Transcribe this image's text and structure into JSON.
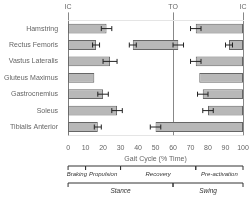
{
  "chart_data": {
    "type": "bar",
    "orientation": "horizontal",
    "categories": [
      "Hamstring",
      "Rectus Femoris",
      "Vastus Lateralis",
      "Gluteus Maximus",
      "Gastrocnemius",
      "Soleus",
      "Tibialis Anterior"
    ],
    "values": [
      [
        {
          "start": 0,
          "end": 22,
          "err_end": 3
        },
        {
          "start": 73,
          "end": 100,
          "err_start": 3
        }
      ],
      [
        {
          "start": 0,
          "end": 16,
          "err_end": 2
        },
        {
          "start": 37,
          "end": 63,
          "err_start": 2,
          "err_end": 3
        },
        {
          "start": 92,
          "end": 100,
          "err_start": 2
        }
      ],
      [
        {
          "start": 0,
          "end": 24,
          "err_end": 4
        },
        {
          "start": 73,
          "end": 100,
          "err_start": 3
        }
      ],
      [
        {
          "start": 0,
          "end": 15
        },
        {
          "start": 75,
          "end": 100
        }
      ],
      [
        {
          "start": 0,
          "end": 20,
          "err_end": 3
        },
        {
          "start": 77,
          "end": 100,
          "err_start": 3
        }
      ],
      [
        {
          "start": 0,
          "end": 28,
          "err_end": 3
        },
        {
          "start": 80,
          "end": 100,
          "err_start": 3
        }
      ],
      [
        {
          "start": 0,
          "end": 17,
          "err_end": 2
        },
        {
          "start": 50,
          "end": 100,
          "err_start": 3
        }
      ]
    ],
    "color": "#b8b8b8",
    "xlabel": "Gait Cycle (% Time)",
    "xlim": [
      0,
      100
    ],
    "xticks": [
      0,
      10,
      20,
      30,
      40,
      50,
      60,
      70,
      80,
      90,
      100
    ],
    "x2lim": [
      0,
      100
    ],
    "x2ticks": [
      {
        "value": 0,
        "label": "IC"
      },
      {
        "value": 60,
        "label": "TO"
      },
      {
        "value": 100,
        "label": "IC"
      }
    ],
    "grid": false,
    "annotations": [
      [
        {
          "text": "Braking",
          "start": 0,
          "end": 10
        },
        {
          "text": "Propulsion",
          "start": 10,
          "end": 30
        },
        {
          "text": "Recovery",
          "start": 30,
          "end": 73
        },
        {
          "text": "Pre-activation",
          "start": 73,
          "end": 100
        }
      ],
      [
        {
          "text": "Stance",
          "start": 0,
          "end": 60
        },
        {
          "text": "Swing",
          "start": 60,
          "end": 100
        }
      ]
    ]
  }
}
